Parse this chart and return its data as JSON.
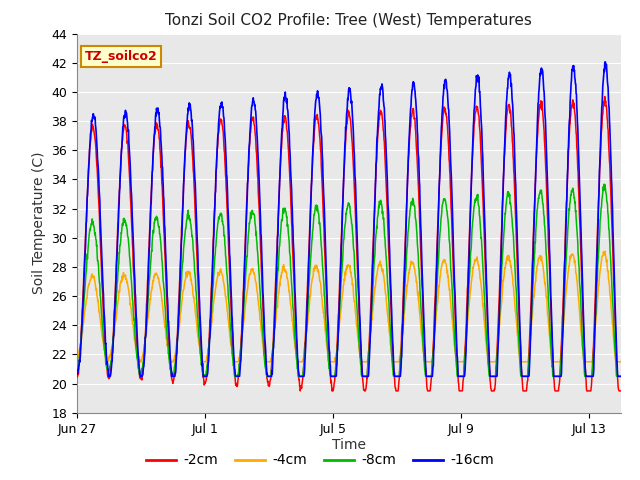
{
  "title": "Tonzi Soil CO2 Profile: Tree (West) Temperatures",
  "xlabel": "Time",
  "ylabel": "Soil Temperature (C)",
  "ylim": [
    18,
    44
  ],
  "yticks": [
    18,
    20,
    22,
    24,
    26,
    28,
    30,
    32,
    34,
    36,
    38,
    40,
    42,
    44
  ],
  "xtick_labels": [
    "Jun 27",
    "Jul 1",
    "Jul 5",
    "Jul 9",
    "Jul 13"
  ],
  "xtick_positions": [
    0,
    4,
    8,
    12,
    16
  ],
  "legend_label": "TZ_soilco2",
  "series_labels": [
    "-2cm",
    "-4cm",
    "-8cm",
    "-16cm"
  ],
  "series_colors": [
    "#ff0000",
    "#ffaa00",
    "#00bb00",
    "#0000ff"
  ],
  "plot_bg": "#e8e8e8",
  "fig_bg": "#ffffff",
  "grid_color": "#ffffff",
  "num_days": 17,
  "ppd": 96
}
